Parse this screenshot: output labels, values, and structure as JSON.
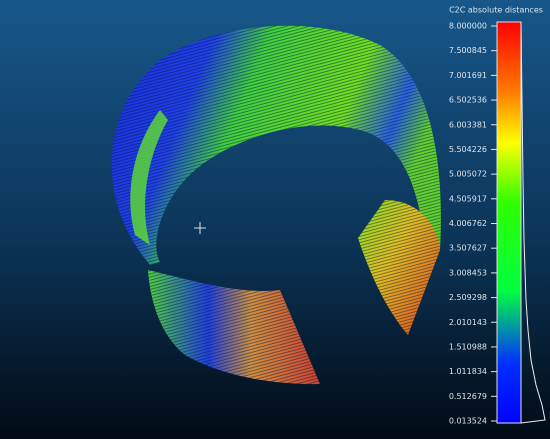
{
  "color_scale": {
    "title": "C2C absolute distances",
    "labels": [
      "8.000000",
      "7.500845",
      "7.001691",
      "6.502536",
      "6.003381",
      "5.504226",
      "5.005072",
      "4.505917",
      "4.006762",
      "3.507627",
      "3.008453",
      "2.509298",
      "2.010143",
      "1.510988",
      "1.011834",
      "0.512679",
      "0.013524"
    ]
  }
}
